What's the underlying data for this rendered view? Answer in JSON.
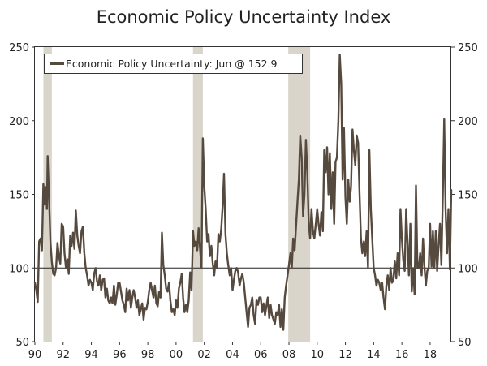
{
  "chart_data": {
    "type": "line",
    "title": "Economic Policy Uncertainty Index",
    "xlabel": "",
    "ylabel": "",
    "xlim": [
      1990.0,
      2019.5
    ],
    "ylim": [
      50,
      250
    ],
    "reference_line": 100,
    "grid": false,
    "legend_position": "top-left",
    "x_ticks": [
      {
        "value": 1990,
        "label": "90"
      },
      {
        "value": 1992,
        "label": "92"
      },
      {
        "value": 1994,
        "label": "94"
      },
      {
        "value": 1996,
        "label": "96"
      },
      {
        "value": 1998,
        "label": "98"
      },
      {
        "value": 2000,
        "label": "00"
      },
      {
        "value": 2002,
        "label": "02"
      },
      {
        "value": 2004,
        "label": "04"
      },
      {
        "value": 2006,
        "label": "06"
      },
      {
        "value": 2008,
        "label": "08"
      },
      {
        "value": 2010,
        "label": "10"
      },
      {
        "value": 2012,
        "label": "12"
      },
      {
        "value": 2014,
        "label": "14"
      },
      {
        "value": 2016,
        "label": "16"
      },
      {
        "value": 2018,
        "label": "18"
      }
    ],
    "y_ticks": [
      50,
      100,
      150,
      200,
      250
    ],
    "recessions": [
      {
        "start": 1990.6,
        "end": 1991.2
      },
      {
        "start": 2001.2,
        "end": 2001.9
      },
      {
        "start": 2007.95,
        "end": 2009.5
      }
    ],
    "series": [
      {
        "name": "Economic Policy Uncertainty: Jun @ 152.9",
        "color": "#564a3f",
        "points": [
          [
            1990.0,
            90
          ],
          [
            1990.1,
            85
          ],
          [
            1990.2,
            77
          ],
          [
            1990.3,
            118
          ],
          [
            1990.4,
            120
          ],
          [
            1990.5,
            112
          ],
          [
            1990.6,
            157
          ],
          [
            1990.7,
            143
          ],
          [
            1990.8,
            155
          ],
          [
            1990.85,
            140
          ],
          [
            1990.9,
            176
          ],
          [
            1991.0,
            148
          ],
          [
            1991.1,
            118
          ],
          [
            1991.2,
            104
          ],
          [
            1991.3,
            96
          ],
          [
            1991.4,
            95
          ],
          [
            1991.5,
            100
          ],
          [
            1991.6,
            117
          ],
          [
            1991.7,
            108
          ],
          [
            1991.8,
            103
          ],
          [
            1991.9,
            130
          ],
          [
            1992.0,
            128
          ],
          [
            1992.1,
            110
          ],
          [
            1992.2,
            100
          ],
          [
            1992.3,
            106
          ],
          [
            1992.4,
            96
          ],
          [
            1992.5,
            122
          ],
          [
            1992.6,
            115
          ],
          [
            1992.7,
            124
          ],
          [
            1992.8,
            113
          ],
          [
            1992.9,
            139
          ],
          [
            1993.0,
            122
          ],
          [
            1993.1,
            115
          ],
          [
            1993.2,
            110
          ],
          [
            1993.3,
            125
          ],
          [
            1993.4,
            128
          ],
          [
            1993.5,
            110
          ],
          [
            1993.6,
            100
          ],
          [
            1993.7,
            95
          ],
          [
            1993.8,
            88
          ],
          [
            1993.9,
            92
          ],
          [
            1994.0,
            90
          ],
          [
            1994.1,
            85
          ],
          [
            1994.2,
            96
          ],
          [
            1994.3,
            100
          ],
          [
            1994.4,
            91
          ],
          [
            1994.5,
            88
          ],
          [
            1994.6,
            95
          ],
          [
            1994.7,
            85
          ],
          [
            1994.8,
            92
          ],
          [
            1994.9,
            93
          ],
          [
            1995.0,
            80
          ],
          [
            1995.1,
            86
          ],
          [
            1995.2,
            78
          ],
          [
            1995.3,
            76
          ],
          [
            1995.4,
            80
          ],
          [
            1995.5,
            76
          ],
          [
            1995.6,
            88
          ],
          [
            1995.7,
            75
          ],
          [
            1995.8,
            82
          ],
          [
            1995.9,
            90
          ],
          [
            1996.0,
            90
          ],
          [
            1996.1,
            84
          ],
          [
            1996.2,
            78
          ],
          [
            1996.3,
            75
          ],
          [
            1996.4,
            70
          ],
          [
            1996.5,
            86
          ],
          [
            1996.6,
            78
          ],
          [
            1996.7,
            85
          ],
          [
            1996.8,
            73
          ],
          [
            1996.9,
            80
          ],
          [
            1997.0,
            85
          ],
          [
            1997.1,
            80
          ],
          [
            1997.2,
            73
          ],
          [
            1997.3,
            78
          ],
          [
            1997.4,
            68
          ],
          [
            1997.5,
            72
          ],
          [
            1997.6,
            76
          ],
          [
            1997.7,
            65
          ],
          [
            1997.8,
            73
          ],
          [
            1997.9,
            72
          ],
          [
            1998.0,
            77
          ],
          [
            1998.1,
            85
          ],
          [
            1998.2,
            90
          ],
          [
            1998.3,
            85
          ],
          [
            1998.4,
            80
          ],
          [
            1998.5,
            88
          ],
          [
            1998.6,
            76
          ],
          [
            1998.7,
            74
          ],
          [
            1998.8,
            84
          ],
          [
            1998.9,
            80
          ],
          [
            1999.0,
            124
          ],
          [
            1999.1,
            102
          ],
          [
            1999.2,
            95
          ],
          [
            1999.3,
            86
          ],
          [
            1999.4,
            84
          ],
          [
            1999.5,
            90
          ],
          [
            1999.6,
            78
          ],
          [
            1999.7,
            70
          ],
          [
            1999.8,
            72
          ],
          [
            1999.9,
            68
          ],
          [
            2000.0,
            78
          ],
          [
            2000.1,
            73
          ],
          [
            2000.2,
            86
          ],
          [
            2000.3,
            90
          ],
          [
            2000.4,
            96
          ],
          [
            2000.5,
            80
          ],
          [
            2000.6,
            70
          ],
          [
            2000.7,
            75
          ],
          [
            2000.8,
            70
          ],
          [
            2000.9,
            78
          ],
          [
            2001.0,
            97
          ],
          [
            2001.1,
            85
          ],
          [
            2001.2,
            125
          ],
          [
            2001.3,
            115
          ],
          [
            2001.4,
            118
          ],
          [
            2001.5,
            112
          ],
          [
            2001.6,
            127
          ],
          [
            2001.7,
            113
          ],
          [
            2001.8,
            100
          ],
          [
            2001.9,
            188
          ],
          [
            2002.0,
            155
          ],
          [
            2002.1,
            140
          ],
          [
            2002.2,
            118
          ],
          [
            2002.3,
            123
          ],
          [
            2002.4,
            108
          ],
          [
            2002.5,
            115
          ],
          [
            2002.6,
            103
          ],
          [
            2002.7,
            95
          ],
          [
            2002.8,
            105
          ],
          [
            2002.9,
            100
          ],
          [
            2003.0,
            123
          ],
          [
            2003.1,
            118
          ],
          [
            2003.2,
            126
          ],
          [
            2003.3,
            142
          ],
          [
            2003.4,
            164
          ],
          [
            2003.5,
            123
          ],
          [
            2003.6,
            110
          ],
          [
            2003.7,
            102
          ],
          [
            2003.8,
            95
          ],
          [
            2003.9,
            100
          ],
          [
            2004.0,
            85
          ],
          [
            2004.1,
            92
          ],
          [
            2004.2,
            98
          ],
          [
            2004.3,
            100
          ],
          [
            2004.4,
            97
          ],
          [
            2004.5,
            88
          ],
          [
            2004.6,
            93
          ],
          [
            2004.7,
            96
          ],
          [
            2004.8,
            90
          ],
          [
            2004.9,
            80
          ],
          [
            2005.0,
            70
          ],
          [
            2005.1,
            60
          ],
          [
            2005.2,
            73
          ],
          [
            2005.3,
            75
          ],
          [
            2005.4,
            80
          ],
          [
            2005.5,
            68
          ],
          [
            2005.6,
            62
          ],
          [
            2005.7,
            78
          ],
          [
            2005.8,
            75
          ],
          [
            2005.9,
            80
          ],
          [
            2006.0,
            80
          ],
          [
            2006.1,
            70
          ],
          [
            2006.2,
            76
          ],
          [
            2006.3,
            68
          ],
          [
            2006.4,
            74
          ],
          [
            2006.5,
            80
          ],
          [
            2006.6,
            66
          ],
          [
            2006.7,
            75
          ],
          [
            2006.8,
            68
          ],
          [
            2006.9,
            65
          ],
          [
            2007.0,
            62
          ],
          [
            2007.1,
            70
          ],
          [
            2007.2,
            68
          ],
          [
            2007.3,
            75
          ],
          [
            2007.4,
            60
          ],
          [
            2007.5,
            72
          ],
          [
            2007.6,
            58
          ],
          [
            2007.7,
            80
          ],
          [
            2007.8,
            88
          ],
          [
            2007.9,
            95
          ],
          [
            2008.0,
            102
          ],
          [
            2008.1,
            110
          ],
          [
            2008.2,
            100
          ],
          [
            2008.3,
            120
          ],
          [
            2008.4,
            112
          ],
          [
            2008.5,
            128
          ],
          [
            2008.6,
            145
          ],
          [
            2008.7,
            160
          ],
          [
            2008.8,
            190
          ],
          [
            2008.9,
            175
          ],
          [
            2009.0,
            135
          ],
          [
            2009.1,
            150
          ],
          [
            2009.2,
            187
          ],
          [
            2009.3,
            165
          ],
          [
            2009.4,
            130
          ],
          [
            2009.5,
            120
          ],
          [
            2009.6,
            140
          ],
          [
            2009.7,
            125
          ],
          [
            2009.8,
            120
          ],
          [
            2009.9,
            130
          ],
          [
            2010.0,
            140
          ],
          [
            2010.1,
            130
          ],
          [
            2010.2,
            122
          ],
          [
            2010.3,
            138
          ],
          [
            2010.4,
            125
          ],
          [
            2010.5,
            180
          ],
          [
            2010.6,
            165
          ],
          [
            2010.7,
            182
          ],
          [
            2010.8,
            150
          ],
          [
            2010.9,
            178
          ],
          [
            2011.0,
            140
          ],
          [
            2011.1,
            165
          ],
          [
            2011.2,
            130
          ],
          [
            2011.3,
            172
          ],
          [
            2011.4,
            175
          ],
          [
            2011.5,
            200
          ],
          [
            2011.6,
            245
          ],
          [
            2011.7,
            225
          ],
          [
            2011.8,
            160
          ],
          [
            2011.9,
            195
          ],
          [
            2012.0,
            148
          ],
          [
            2012.1,
            130
          ],
          [
            2012.2,
            160
          ],
          [
            2012.3,
            145
          ],
          [
            2012.4,
            155
          ],
          [
            2012.5,
            194
          ],
          [
            2012.6,
            180
          ],
          [
            2012.7,
            170
          ],
          [
            2012.8,
            190
          ],
          [
            2012.9,
            185
          ],
          [
            2013.0,
            150
          ],
          [
            2013.1,
            120
          ],
          [
            2013.2,
            110
          ],
          [
            2013.3,
            118
          ],
          [
            2013.4,
            108
          ],
          [
            2013.5,
            125
          ],
          [
            2013.6,
            100
          ],
          [
            2013.7,
            180
          ],
          [
            2013.8,
            140
          ],
          [
            2013.9,
            120
          ],
          [
            2014.0,
            100
          ],
          [
            2014.1,
            95
          ],
          [
            2014.2,
            88
          ],
          [
            2014.3,
            92
          ],
          [
            2014.4,
            90
          ],
          [
            2014.5,
            85
          ],
          [
            2014.6,
            90
          ],
          [
            2014.7,
            80
          ],
          [
            2014.8,
            72
          ],
          [
            2014.9,
            88
          ],
          [
            2015.0,
            95
          ],
          [
            2015.1,
            85
          ],
          [
            2015.2,
            100
          ],
          [
            2015.3,
            90
          ],
          [
            2015.4,
            92
          ],
          [
            2015.5,
            105
          ],
          [
            2015.6,
            93
          ],
          [
            2015.7,
            110
          ],
          [
            2015.8,
            95
          ],
          [
            2015.9,
            140
          ],
          [
            2016.0,
            120
          ],
          [
            2016.1,
            105
          ],
          [
            2016.2,
            98
          ],
          [
            2016.3,
            140
          ],
          [
            2016.4,
            117
          ],
          [
            2016.5,
            95
          ],
          [
            2016.6,
            130
          ],
          [
            2016.7,
            84
          ],
          [
            2016.8,
            100
          ],
          [
            2016.9,
            82
          ],
          [
            2017.0,
            156
          ],
          [
            2017.1,
            100
          ],
          [
            2017.2,
            100
          ],
          [
            2017.3,
            110
          ],
          [
            2017.4,
            95
          ],
          [
            2017.5,
            120
          ],
          [
            2017.6,
            100
          ],
          [
            2017.7,
            88
          ],
          [
            2017.8,
            98
          ],
          [
            2017.9,
            100
          ],
          [
            2018.0,
            130
          ],
          [
            2018.1,
            101
          ],
          [
            2018.2,
            125
          ],
          [
            2018.3,
            100
          ],
          [
            2018.4,
            125
          ],
          [
            2018.5,
            98
          ],
          [
            2018.6,
            115
          ],
          [
            2018.7,
            130
          ],
          [
            2018.8,
            102
          ],
          [
            2018.9,
            150
          ],
          [
            2019.0,
            201
          ],
          [
            2019.1,
            140
          ],
          [
            2019.2,
            110
          ],
          [
            2019.3,
            140
          ],
          [
            2019.4,
            99
          ],
          [
            2019.5,
            152.9
          ]
        ]
      }
    ]
  }
}
